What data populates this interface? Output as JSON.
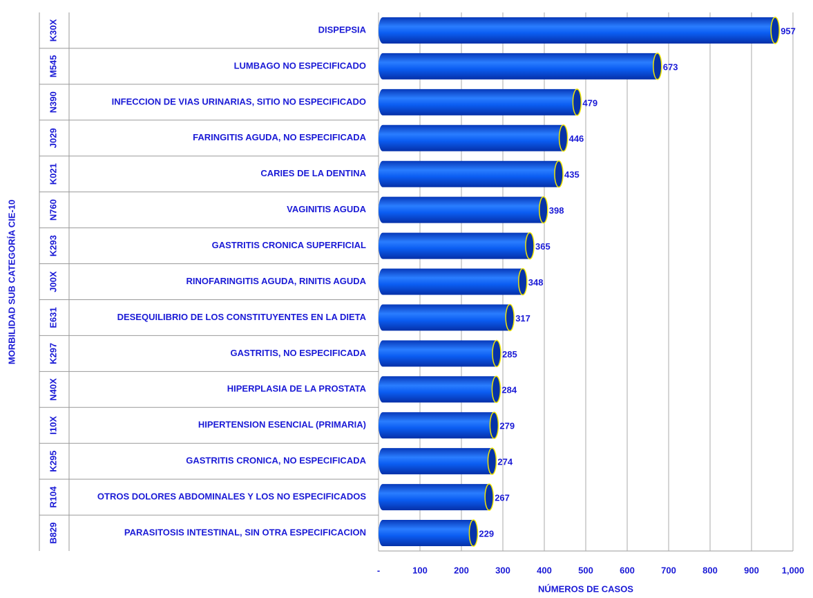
{
  "chart_data": {
    "type": "bar",
    "orientation": "horizontal",
    "ylabel": "MORBILIDAD SUB CATEGORÍA CIE-10",
    "xlabel": "NÚMEROS DE CASOS",
    "codes": [
      "K30X",
      "M545",
      "N390",
      "J029",
      "K021",
      "N760",
      "K293",
      "J00X",
      "E631",
      "K297",
      "N40X",
      "I10X",
      "K295",
      "R104",
      "B829"
    ],
    "categories": [
      "DISPEPSIA",
      "LUMBAGO NO ESPECIFICADO",
      "INFECCION DE VIAS URINARIAS, SITIO NO ESPECIFICADO",
      "FARINGITIS AGUDA, NO ESPECIFICADA",
      "CARIES DE LA DENTINA",
      "VAGINITIS AGUDA",
      "GASTRITIS CRONICA SUPERFICIAL",
      "RINOFARINGITIS AGUDA, RINITIS AGUDA",
      "DESEQUILIBRIO DE LOS CONSTITUYENTES EN LA DIETA",
      "GASTRITIS, NO ESPECIFICADA",
      "HIPERPLASIA DE LA PROSTATA",
      "HIPERTENSION ESENCIAL (PRIMARIA)",
      "GASTRITIS CRONICA, NO ESPECIFICADA",
      "OTROS DOLORES ABDOMINALES Y LOS NO ESPECIFICADOS",
      "PARASITOSIS INTESTINAL, SIN OTRA ESPECIFICACION"
    ],
    "values": [
      957,
      673,
      479,
      446,
      435,
      398,
      365,
      348,
      317,
      285,
      284,
      279,
      274,
      267,
      229
    ],
    "color": "#0a5cf0",
    "xlim": [
      0,
      1000
    ],
    "xticks": [
      {
        "value": 0,
        "label": "-"
      },
      100,
      200,
      300,
      400,
      500,
      600,
      700,
      800,
      900,
      {
        "value": 1000,
        "label": "1,000"
      }
    ],
    "grid": true
  }
}
